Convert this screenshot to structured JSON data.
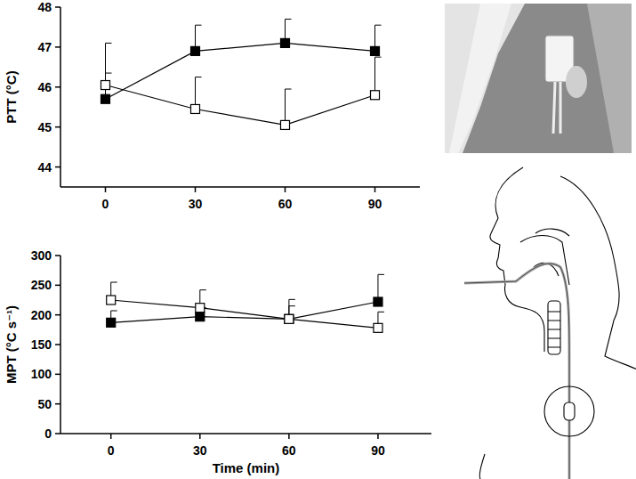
{
  "chart_data": [
    {
      "type": "line",
      "y_label": "PTT (°C)",
      "x": [
        0,
        30,
        60,
        90
      ],
      "xlim": [
        -15,
        105
      ],
      "xticks": [
        0,
        30,
        60,
        90
      ],
      "ylim": [
        43.5,
        48
      ],
      "yticks": [
        44,
        45,
        46,
        47,
        48
      ],
      "grid": false,
      "series": [
        {
          "color": "#000000",
          "marker": "square-filled",
          "line_style": "solid",
          "values": [
            45.7,
            46.9,
            47.1,
            46.9
          ],
          "errors": [
            0.65,
            0.65,
            0.6,
            0.65
          ]
        },
        {
          "color": "#000000",
          "marker": "square-open",
          "line_style": "solid",
          "values": [
            46.05,
            45.45,
            45.05,
            45.8
          ],
          "errors": [
            1.05,
            0.8,
            0.9,
            0.95
          ]
        }
      ]
    },
    {
      "type": "line",
      "y_label": "MPT (°C s⁻¹)",
      "x_label": "Time (min)",
      "x": [
        0,
        30,
        60,
        90
      ],
      "xlim": [
        -17,
        108
      ],
      "xticks": [
        0,
        30,
        60,
        90
      ],
      "ylim": [
        0,
        300
      ],
      "yticks": [
        0,
        50,
        100,
        150,
        200,
        250,
        300
      ],
      "grid": false,
      "series": [
        {
          "color": "#000000",
          "marker": "square-filled",
          "line_style": "solid",
          "values": [
            187,
            197,
            193,
            222
          ],
          "errors": [
            20,
            15,
            22,
            46
          ]
        },
        {
          "color": "#000000",
          "marker": "square-open",
          "line_style": "solid",
          "values": [
            225,
            212,
            193,
            178
          ],
          "errors": [
            30,
            30,
            33,
            27
          ]
        }
      ]
    }
  ]
}
